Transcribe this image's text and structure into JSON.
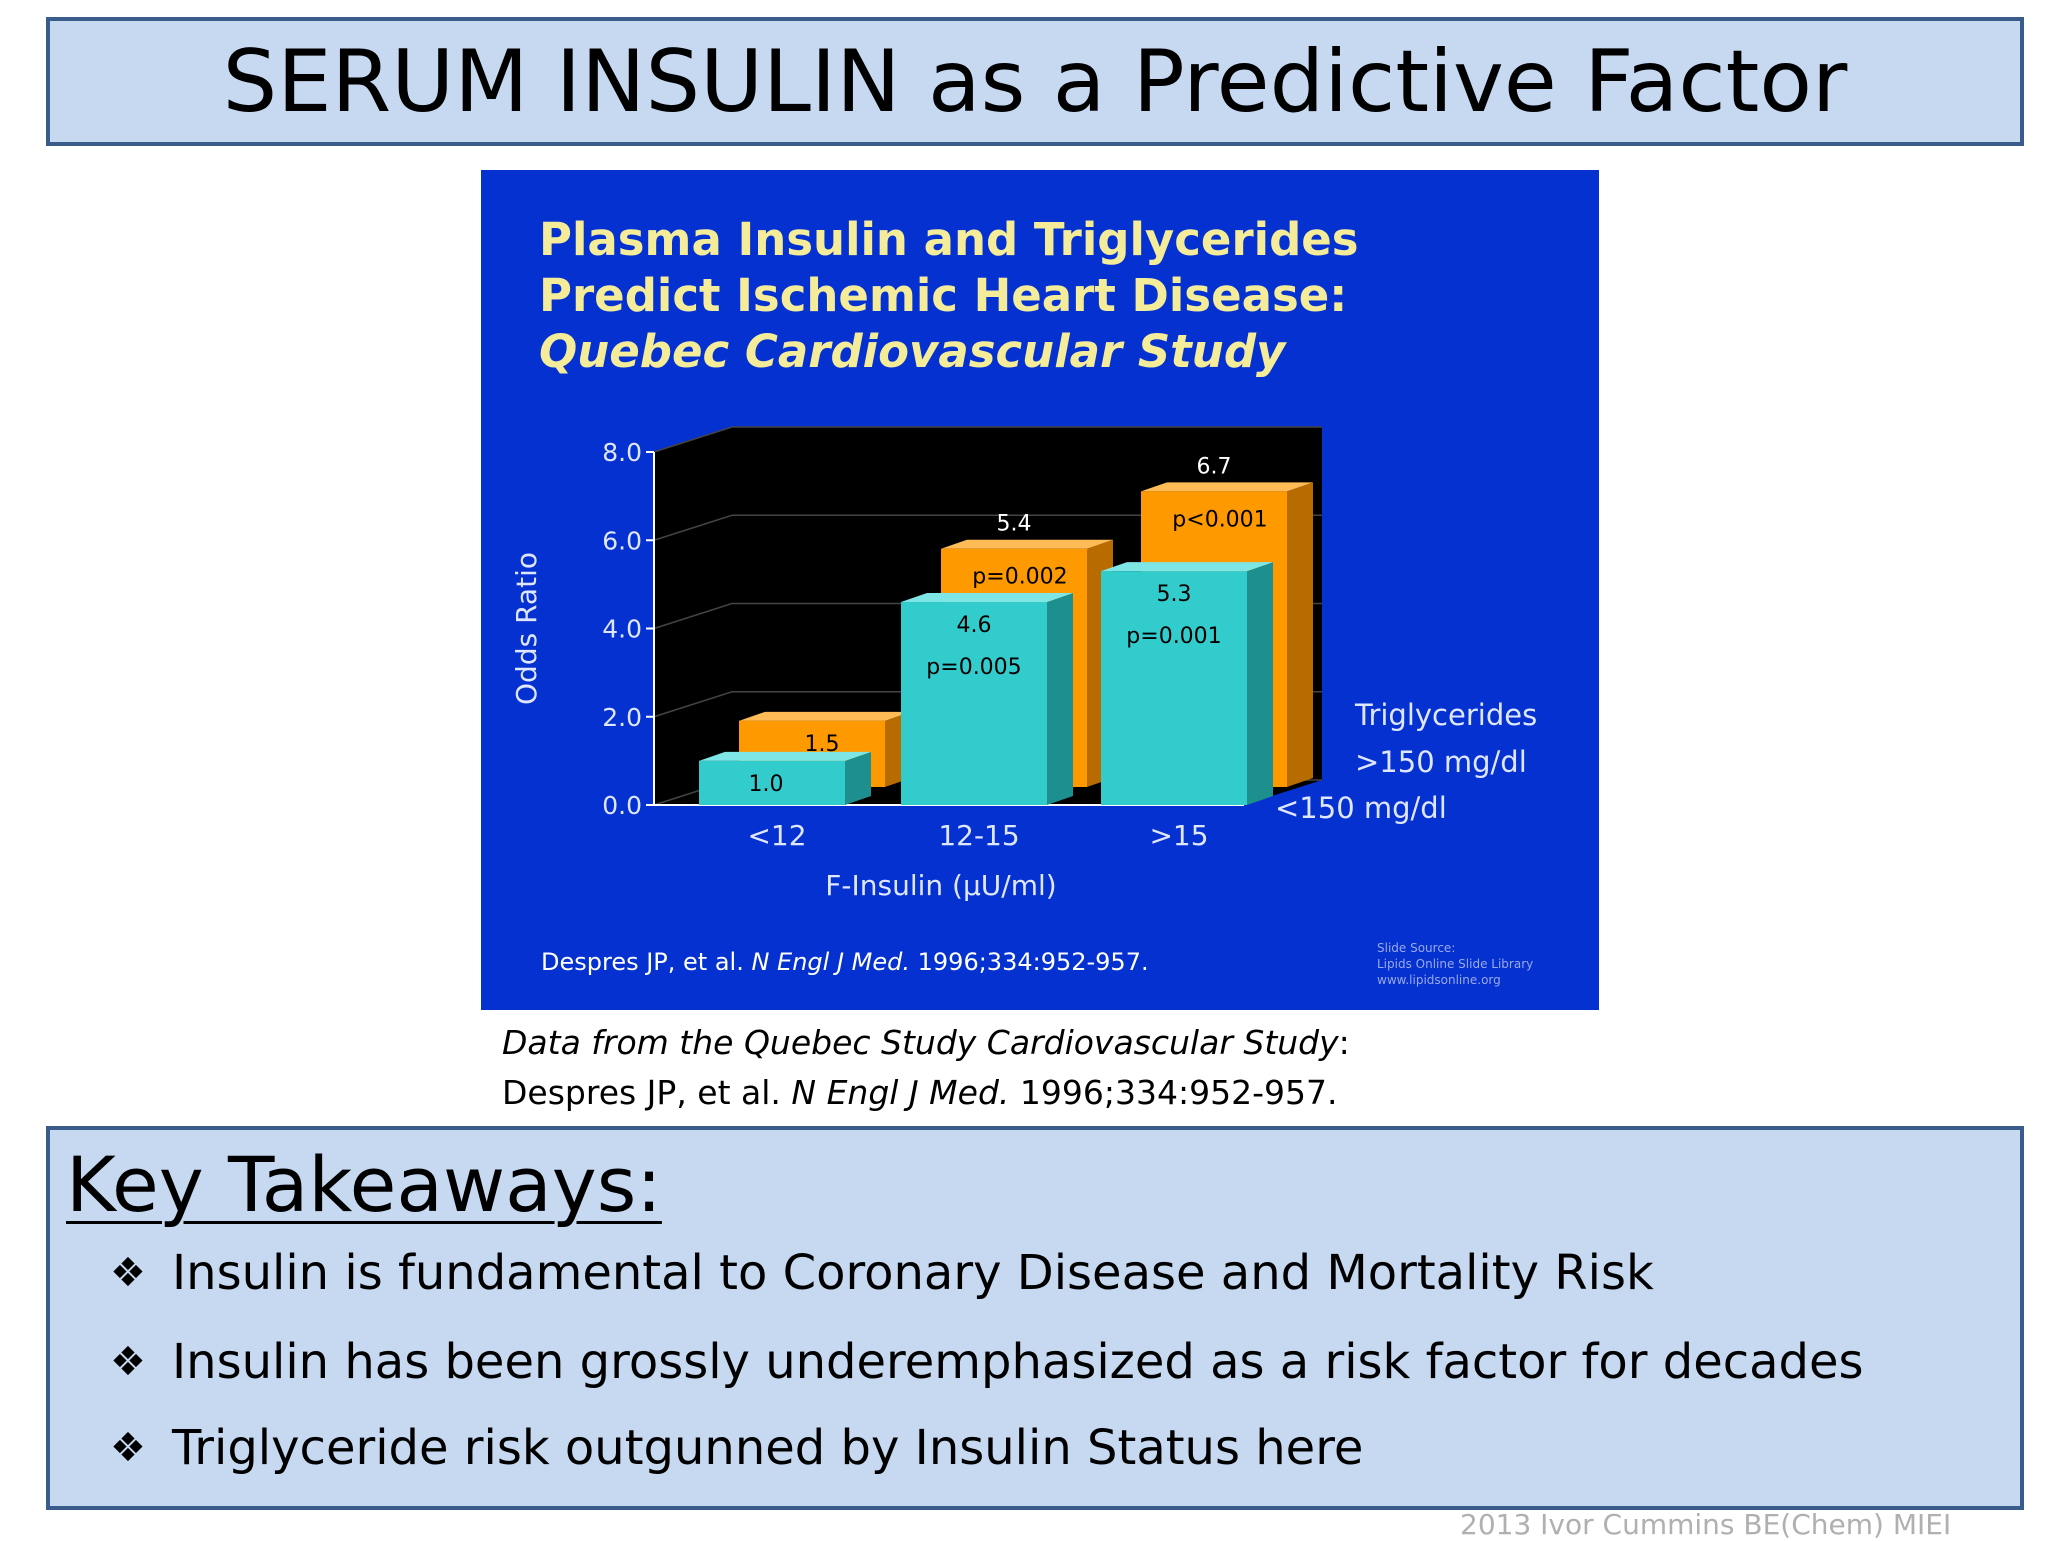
{
  "title": "SERUM INSULIN as a Predictive Factor",
  "slide": {
    "title_line1": "Plasma Insulin and Triglycerides",
    "title_line2": "Predict Ischemic Heart Disease:",
    "title_line3": "Quebec Cardiovascular Study",
    "reference_prefix": "Despres JP, et al. ",
    "reference_journal": "N Engl J Med.",
    "reference_suffix": " 1996;334:952-957.",
    "source_line1": "Slide Source:",
    "source_line2": "Lipids Online Slide Library",
    "source_line3": "www.lipidsonline.org"
  },
  "chart_data": {
    "type": "bar",
    "title": "Plasma Insulin and Triglycerides Predict Ischemic Heart Disease: Quebec Cardiovascular Study",
    "xlabel": "F-Insulin (µU/ml)",
    "ylabel": "Odds Ratio",
    "categories": [
      "<12",
      "12-15",
      ">15"
    ],
    "yticks": [
      "0.0",
      "2.0",
      "4.0",
      "6.0",
      "8.0"
    ],
    "ylim": [
      0,
      8
    ],
    "legend_title": "Triglycerides",
    "series": [
      {
        "name": ">150 mg/dl",
        "values": [
          1.5,
          5.4,
          6.7
        ],
        "pvalues": [
          "",
          "p=0.002",
          "p<0.001"
        ],
        "color": "#ff9900"
      },
      {
        "name": "<150 mg/dl",
        "values": [
          1.0,
          4.6,
          5.3
        ],
        "pvalues": [
          "",
          "p=0.005",
          "p=0.001"
        ],
        "color": "#33cccc"
      }
    ]
  },
  "caption": {
    "line1": "Data from the Quebec Study Cardiovascular Study",
    "line1_colon": ":",
    "line2_prefix": "Despres JP, et al. ",
    "line2_journal": "N Engl J Med.",
    "line2_suffix": " 1996;334:952-957."
  },
  "takeaways": {
    "heading": "Key Takeaways:",
    "bullet_symbol": "❖",
    "items": [
      "Insulin is fundamental to Coronary Disease and Mortality Risk",
      "Insulin has been grossly underemphasized as a risk factor for decades",
      "Triglyceride risk outgunned by Insulin Status here"
    ]
  },
  "footer": "2013 Ivor Cummins BE(Chem) MIEI"
}
